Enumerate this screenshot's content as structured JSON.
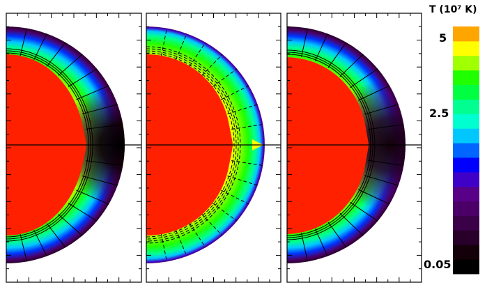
{
  "chart_data": {
    "type": "heatmap",
    "colorbar": {
      "label": "T (10⁷ K)",
      "tick_labels": [
        "5",
        "2.5",
        "0.05"
      ],
      "colors": [
        "#000000",
        "#140008",
        "#28002a",
        "#3a0048",
        "#4b0068",
        "#580088",
        "#3f00c8",
        "#0000ff",
        "#0066ff",
        "#00c8ff",
        "#00ffd0",
        "#00ff90",
        "#00ff40",
        "#20ff00",
        "#a0ff00",
        "#ffff00",
        "#ffa500"
      ]
    },
    "panels": [
      {
        "core_color": "#ff2000",
        "flow_lines": "solid"
      },
      {
        "core_color": "#ff2000",
        "flow_lines": "dashed"
      },
      {
        "core_color": "#ff2000",
        "flow_lines": "solid"
      }
    ]
  }
}
